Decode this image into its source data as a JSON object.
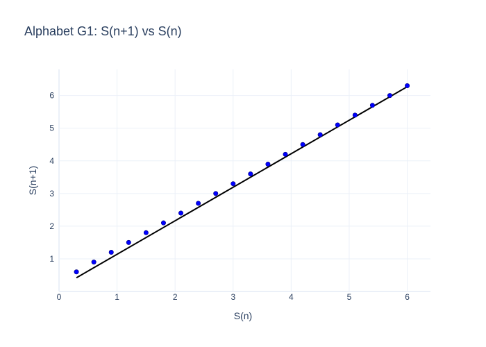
{
  "chart_data": {
    "type": "scatter",
    "title": "Alphabet G1: S(n+1) vs S(n)",
    "xlabel": "S(n)",
    "ylabel": "S(n+1)",
    "xlim": [
      0,
      6.4
    ],
    "ylim": [
      0,
      6.8
    ],
    "x_ticks": [
      0,
      1,
      2,
      3,
      4,
      5,
      6
    ],
    "y_ticks": [
      1,
      2,
      3,
      4,
      5,
      6
    ],
    "grid": true,
    "legend": "none",
    "points": {
      "color": "#0000ff",
      "x": [
        0.3,
        0.6,
        0.9,
        1.2,
        1.5,
        1.8,
        2.1,
        2.4,
        2.7,
        3.0,
        3.3,
        3.6,
        3.9,
        4.2,
        4.5,
        4.8,
        5.1,
        5.4,
        5.7,
        6.0
      ],
      "y": [
        0.6,
        0.9,
        1.2,
        1.5,
        1.8,
        2.1,
        2.4,
        2.7,
        3.0,
        3.3,
        3.6,
        3.9,
        4.2,
        4.5,
        4.8,
        5.1,
        5.4,
        5.7,
        6.0,
        6.3
      ]
    },
    "fit_line": {
      "color": "#000000",
      "x": [
        0.3,
        6.0
      ],
      "y": [
        0.42,
        6.27
      ]
    }
  }
}
